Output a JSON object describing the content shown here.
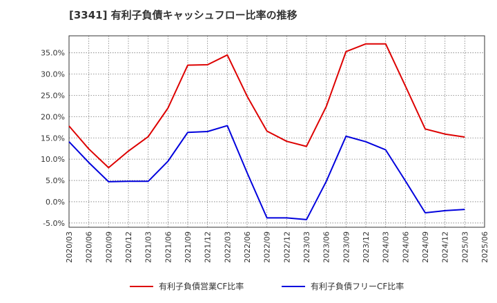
{
  "chart_data": {
    "type": "line",
    "title": "[3341]  有利子負債キャッシュフロー比率の推移",
    "xlabel": "",
    "ylabel": "",
    "x_ticks": [
      "2020/03",
      "2020/06",
      "2020/09",
      "2020/12",
      "2021/03",
      "2021/06",
      "2021/09",
      "2021/12",
      "2022/03",
      "2022/06",
      "2022/09",
      "2022/12",
      "2023/03",
      "2023/06",
      "2023/09",
      "2023/12",
      "2024/03",
      "2024/06",
      "2024/09",
      "2024/12",
      "2025/03",
      "2025/06"
    ],
    "y_ticks": [
      "-5.0%",
      "0.0%",
      "5.0%",
      "10.0%",
      "15.0%",
      "20.0%",
      "25.0%",
      "30.0%",
      "35.0%"
    ],
    "ylim": [
      -6,
      39
    ],
    "grid": true,
    "legend_position": "bottom",
    "series": [
      {
        "name": "有利子負債営業CF比率",
        "color": "#dd0000",
        "values": [
          17.8,
          12.4,
          8.0,
          11.9,
          15.3,
          22.0,
          32.1,
          32.2,
          34.5,
          24.8,
          16.6,
          14.2,
          13.0,
          22.4,
          35.3,
          37.1,
          37.1,
          27.2,
          17.1,
          15.9,
          15.2
        ]
      },
      {
        "name": "有利子負債フリーCF比率",
        "color": "#0000dd",
        "values": [
          14.1,
          9.2,
          4.7,
          4.8,
          4.8,
          9.5,
          16.3,
          16.5,
          17.9,
          6.8,
          -3.8,
          -3.8,
          -4.2,
          4.8,
          15.4,
          14.1,
          12.2,
          4.9,
          -2.6,
          -2.1,
          -1.8
        ]
      }
    ]
  }
}
